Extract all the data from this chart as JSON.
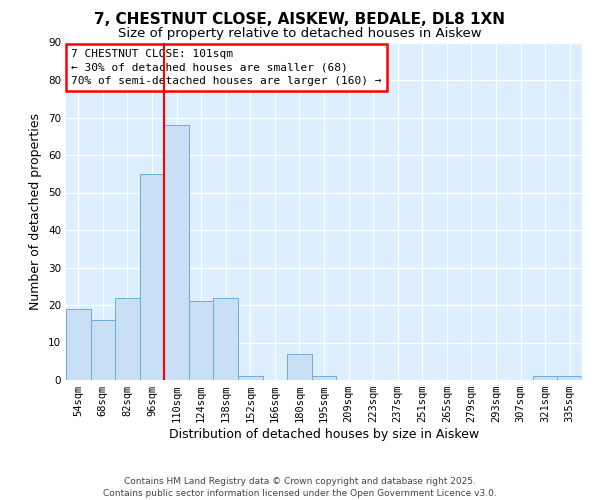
{
  "title": "7, CHESTNUT CLOSE, AISKEW, BEDALE, DL8 1XN",
  "subtitle": "Size of property relative to detached houses in Aiskew",
  "xlabel": "Distribution of detached houses by size in Aiskew",
  "ylabel": "Number of detached properties",
  "bar_labels": [
    "54sqm",
    "68sqm",
    "82sqm",
    "96sqm",
    "110sqm",
    "124sqm",
    "138sqm",
    "152sqm",
    "166sqm",
    "180sqm",
    "195sqm",
    "209sqm",
    "223sqm",
    "237sqm",
    "251sqm",
    "265sqm",
    "279sqm",
    "293sqm",
    "307sqm",
    "321sqm",
    "335sqm"
  ],
  "bar_values": [
    19,
    16,
    22,
    55,
    68,
    21,
    22,
    1,
    0,
    7,
    1,
    0,
    0,
    0,
    0,
    0,
    0,
    0,
    0,
    1,
    1
  ],
  "bar_color": "#c9dff5",
  "bar_edgecolor": "#6baed6",
  "vline_x": 3.5,
  "vline_color": "red",
  "ylim": [
    0,
    90
  ],
  "yticks": [
    0,
    10,
    20,
    30,
    40,
    50,
    60,
    70,
    80,
    90
  ],
  "annotation_line1": "7 CHESTNUT CLOSE: 101sqm",
  "annotation_line2": "← 30% of detached houses are smaller (68)",
  "annotation_line3": "70% of semi-detached houses are larger (160) →",
  "footer_line1": "Contains HM Land Registry data © Crown copyright and database right 2025.",
  "footer_line2": "Contains public sector information licensed under the Open Government Licence v3.0.",
  "bg_color": "#f0f4f8",
  "plot_bg_color": "#ddeeff",
  "title_fontsize": 11,
  "subtitle_fontsize": 9.5,
  "axis_label_fontsize": 9,
  "tick_fontsize": 7.5,
  "footer_fontsize": 6.5,
  "annot_fontsize": 8
}
